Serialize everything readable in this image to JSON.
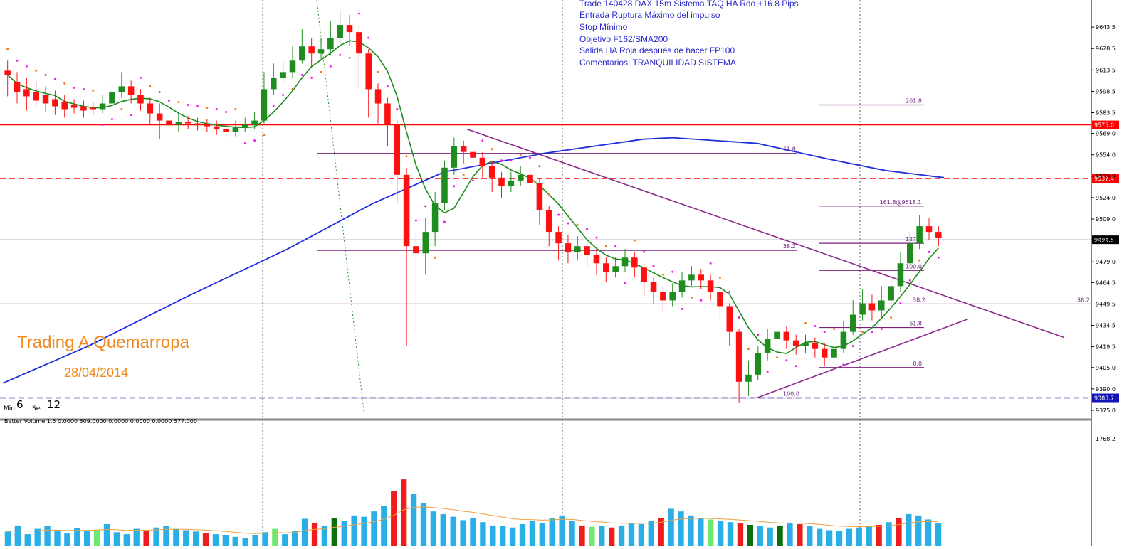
{
  "chart_data": {
    "type": "line",
    "instrument_title": "Trade 140428 DAX 15m Sistema TAQ HA Rdo +16.8 Pips",
    "notes": [
      "Trade 140428 DAX 15m Sistema TAQ HA Rdo +16.8 Pips",
      "Entrada Ruptura Máximo del impulso",
      "Stop Mínimo",
      "Objetivo F162/SMA200",
      "Salida HA Roja después de hacer FP100",
      "Comentarios: TRANQUILIDAD SISTEMA"
    ],
    "brand": "Trading A Quemarropa",
    "date": "28/04/2014",
    "timer": {
      "min_label": "Min",
      "min_value": "6",
      "sec_label": "Sec",
      "sec_value": "12"
    },
    "price_axis": {
      "ticks": [
        "9643.5",
        "9628.5",
        "9613.5",
        "9598.5",
        "9583.5",
        "9569.0",
        "9554.0",
        "9539.0",
        "9524.0",
        "9509.0",
        "9494.5",
        "9479.0",
        "9464.5",
        "9449.5",
        "9434.5",
        "9419.5",
        "9405.0",
        "9390.0",
        "9375.0"
      ],
      "ylim": [
        9370,
        9660
      ]
    },
    "price_markers": [
      {
        "label": "9575.0",
        "value": 9575.0,
        "color": "#ff0000"
      },
      {
        "label": "9537.4",
        "value": 9537.4,
        "color": "#ff0000"
      },
      {
        "label": "9494.5",
        "value": 9494.5,
        "color": "#000000"
      },
      {
        "label": "9383.7",
        "value": 9383.7,
        "color": "#1414b4"
      }
    ],
    "fib_set_1": [
      {
        "label": "61.8",
        "value": 9555
      },
      {
        "label": "38.2",
        "value": 9487
      },
      {
        "label": "100.0",
        "value": 9383.7
      }
    ],
    "fib_set_2": [
      {
        "label": "261.8",
        "value": 9589
      },
      {
        "label": "161.8@9518.1",
        "value": 9518.1
      },
      {
        "label": "127.2",
        "value": 9492
      },
      {
        "label": "100.0",
        "value": 9473
      },
      {
        "label": "38.2",
        "value": 9449.5
      },
      {
        "label": "61.8",
        "value": 9433
      },
      {
        "label": "0.0",
        "value": 9405
      }
    ],
    "long_fib_label": "38.2",
    "candles": [
      [
        9613,
        9610,
        9620,
        9595
      ],
      [
        9605,
        9598,
        9612,
        9590
      ],
      [
        9600,
        9595,
        9608,
        9585
      ],
      [
        9598,
        9592,
        9605,
        9588
      ],
      [
        9596,
        9590,
        9602,
        9584
      ],
      [
        9593,
        9588,
        9599,
        9582
      ],
      [
        9591,
        9586,
        9596,
        9580
      ],
      [
        9589,
        9587,
        9593,
        9583
      ],
      [
        9588,
        9585,
        9592,
        9580
      ],
      [
        9587,
        9586,
        9591,
        9582
      ],
      [
        9586,
        9590,
        9596,
        9583
      ],
      [
        9590,
        9598,
        9604,
        9587
      ],
      [
        9598,
        9602,
        9612,
        9594
      ],
      [
        9602,
        9596,
        9606,
        9590
      ],
      [
        9596,
        9590,
        9600,
        9585
      ],
      [
        9590,
        9583,
        9594,
        9575
      ],
      [
        9583,
        9578,
        9590,
        9565
      ],
      [
        9578,
        9575,
        9584,
        9568
      ],
      [
        9575,
        9577,
        9583,
        9570
      ],
      [
        9577,
        9576,
        9581,
        9572
      ],
      [
        9576,
        9575,
        9580,
        9571
      ],
      [
        9575,
        9574,
        9579,
        9570
      ],
      [
        9574,
        9572,
        9578,
        9568
      ],
      [
        9572,
        9570,
        9576,
        9566
      ],
      [
        9570,
        9573,
        9578,
        9567
      ],
      [
        9573,
        9575,
        9580,
        9570
      ],
      [
        9575,
        9578,
        9584,
        9572
      ],
      [
        9578,
        9600,
        9612,
        9576
      ],
      [
        9600,
        9608,
        9618,
        9596
      ],
      [
        9608,
        9612,
        9620,
        9604
      ],
      [
        9612,
        9620,
        9630,
        9608
      ],
      [
        9620,
        9630,
        9642,
        9618
      ],
      [
        9630,
        9625,
        9636,
        9616
      ],
      [
        9625,
        9628,
        9636,
        9620
      ],
      [
        9628,
        9636,
        9648,
        9624
      ],
      [
        9636,
        9645,
        9655,
        9632
      ],
      [
        9645,
        9640,
        9652,
        9630
      ],
      [
        9640,
        9625,
        9645,
        9600
      ],
      [
        9625,
        9600,
        9628,
        9580
      ],
      [
        9600,
        9590,
        9604,
        9576
      ],
      [
        9590,
        9575,
        9594,
        9560
      ],
      [
        9575,
        9540,
        9578,
        9520
      ],
      [
        9540,
        9490,
        9545,
        9420
      ],
      [
        9490,
        9485,
        9500,
        9430
      ],
      [
        9485,
        9500,
        9510,
        9470
      ],
      [
        9500,
        9520,
        9528,
        9490
      ],
      [
        9520,
        9545,
        9550,
        9515
      ],
      [
        9545,
        9560,
        9566,
        9540
      ],
      [
        9560,
        9556,
        9564,
        9548
      ],
      [
        9556,
        9552,
        9560,
        9544
      ],
      [
        9552,
        9546,
        9556,
        9538
      ],
      [
        9546,
        9538,
        9550,
        9528
      ],
      [
        9538,
        9532,
        9542,
        9524
      ],
      [
        9532,
        9536,
        9542,
        9528
      ],
      [
        9536,
        9540,
        9546,
        9532
      ],
      [
        9540,
        9534,
        9544,
        9526
      ],
      [
        9534,
        9515,
        9538,
        9505
      ],
      [
        9515,
        9500,
        9518,
        9490
      ],
      [
        9500,
        9492,
        9504,
        9480
      ],
      [
        9492,
        9486,
        9498,
        9478
      ],
      [
        9486,
        9490,
        9497,
        9480
      ],
      [
        9490,
        9484,
        9494,
        9476
      ],
      [
        9484,
        9478,
        9488,
        9470
      ],
      [
        9478,
        9472,
        9482,
        9465
      ],
      [
        9472,
        9476,
        9482,
        9468
      ],
      [
        9476,
        9482,
        9488,
        9472
      ],
      [
        9482,
        9475,
        9486,
        9468
      ],
      [
        9475,
        9465,
        9478,
        9455
      ],
      [
        9465,
        9458,
        9468,
        9450
      ],
      [
        9458,
        9452,
        9462,
        9444
      ],
      [
        9452,
        9458,
        9464,
        9448
      ],
      [
        9458,
        9466,
        9472,
        9454
      ],
      [
        9466,
        9470,
        9476,
        9462
      ],
      [
        9470,
        9466,
        9474,
        9460
      ],
      [
        9466,
        9458,
        9470,
        9452
      ],
      [
        9458,
        9448,
        9460,
        9440
      ],
      [
        9448,
        9430,
        9450,
        9420
      ],
      [
        9430,
        9395,
        9432,
        9380
      ],
      [
        9395,
        9400,
        9410,
        9385
      ],
      [
        9400,
        9415,
        9420,
        9396
      ],
      [
        9415,
        9425,
        9432,
        9410
      ],
      [
        9425,
        9430,
        9438,
        9420
      ],
      [
        9430,
        9424,
        9434,
        9418
      ],
      [
        9424,
        9420,
        9428,
        9414
      ],
      [
        9420,
        9422,
        9428,
        9415
      ],
      [
        9422,
        9418,
        9426,
        9412
      ],
      [
        9418,
        9412,
        9422,
        9406
      ],
      [
        9412,
        9418,
        9424,
        9408
      ],
      [
        9418,
        9430,
        9438,
        9415
      ],
      [
        9430,
        9442,
        9452,
        9428
      ],
      [
        9442,
        9450,
        9460,
        9438
      ],
      [
        9450,
        9445,
        9456,
        9438
      ],
      [
        9445,
        9452,
        9462,
        9440
      ],
      [
        9452,
        9462,
        9470,
        9448
      ],
      [
        9462,
        9478,
        9486,
        9458
      ],
      [
        9478,
        9492,
        9500,
        9474
      ],
      [
        9492,
        9504,
        9512,
        9488
      ],
      [
        9504,
        9500,
        9510,
        9494
      ],
      [
        9500,
        9496,
        9504,
        9490
      ]
    ],
    "volume_panel": {
      "title": "Better Volume 1.5 0.0000 309.0000 0.0000 0.0000 0.0000 577.000",
      "max_label": "1768.2",
      "ylim": [
        0,
        1768.2
      ],
      "values": [
        220,
        310,
        180,
        260,
        300,
        240,
        190,
        270,
        230,
        250,
        330,
        210,
        180,
        260,
        230,
        280,
        300,
        260,
        240,
        220,
        200,
        180,
        160,
        140,
        120,
        160,
        210,
        260,
        180,
        230,
        410,
        350,
        300,
        420,
        380,
        460,
        440,
        520,
        600,
        820,
        1000,
        780,
        640,
        520,
        480,
        440,
        390,
        420,
        360,
        310,
        300,
        280,
        330,
        380,
        350,
        420,
        460,
        380,
        310,
        290,
        300,
        280,
        310,
        340,
        330,
        380,
        420,
        560,
        520,
        460,
        420,
        400,
        380,
        360,
        340,
        320,
        300,
        280,
        310,
        340,
        330,
        300,
        260,
        240,
        230,
        260,
        280,
        300,
        320,
        360,
        420,
        480,
        460,
        400,
        340
      ],
      "bar_colors": [
        "blue",
        "red",
        "green",
        "lime"
      ]
    }
  }
}
